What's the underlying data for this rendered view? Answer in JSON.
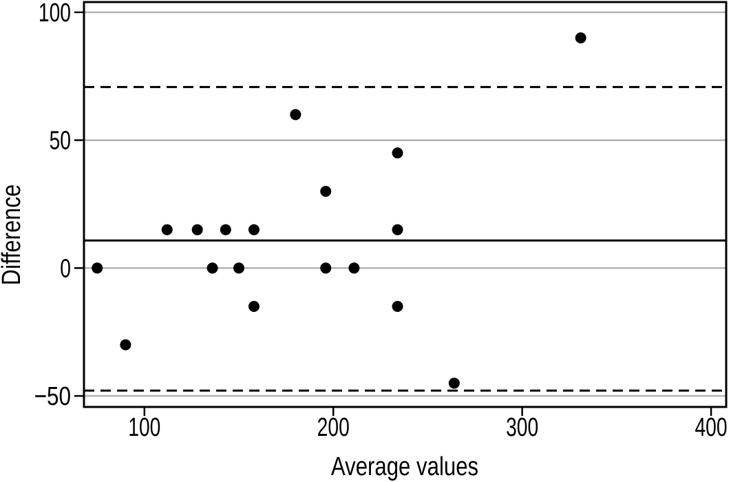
{
  "figure": {
    "background": "#ffffff",
    "description": "Bland-Altman scatter plot of differences against average values with mean line and dashed limits of agreement"
  },
  "chart_data": {
    "type": "scatter",
    "xlabel": "Average values",
    "ylabel": "Difference",
    "xlim": [
      68,
      408
    ],
    "ylim": [
      -54.3,
      104
    ],
    "x_tick_labels": [
      "100",
      "200",
      "300",
      "400"
    ],
    "x_tick_values": [
      100,
      200,
      300,
      400
    ],
    "y_tick_labels": [
      "−50",
      "0",
      "50",
      "100"
    ],
    "y_tick_values": [
      -50,
      0,
      50,
      100
    ],
    "grid": "horizontal-gray-lines-at-y-ticks",
    "legend": "none",
    "point_radius": 8,
    "points": [
      [
        75,
        0
      ],
      [
        90,
        -30
      ],
      [
        112,
        15
      ],
      [
        128,
        15
      ],
      [
        136,
        0
      ],
      [
        143,
        15
      ],
      [
        150,
        0
      ],
      [
        158,
        15
      ],
      [
        158,
        -15
      ],
      [
        180,
        60
      ],
      [
        196,
        30
      ],
      [
        196,
        0
      ],
      [
        211,
        0
      ],
      [
        234,
        45
      ],
      [
        234,
        15
      ],
      [
        234,
        -15
      ],
      [
        264,
        -45
      ],
      [
        331,
        90
      ]
    ],
    "reference_lines": [
      {
        "name": "mean-difference",
        "value": 10.8,
        "style": "solid"
      },
      {
        "name": "upper-limit-of-agreement",
        "value": 70.8,
        "style": "dashed"
      },
      {
        "name": "lower-limit-of-agreement",
        "value": -47.9,
        "style": "dashed"
      }
    ],
    "colors": {
      "point": "#000000",
      "line": "#000000",
      "grid": "#b3b3b3",
      "axis": "#000000",
      "background": "#ffffff"
    }
  }
}
